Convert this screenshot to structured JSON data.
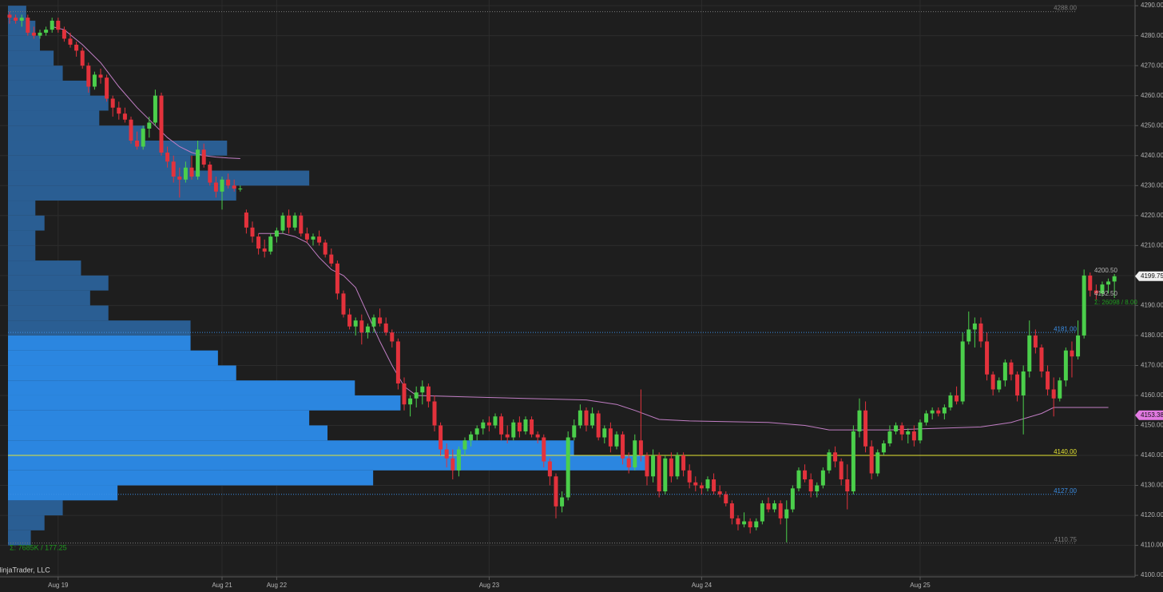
{
  "chart_data": {
    "type": "candlestick",
    "up_color": "#4bcf4b",
    "down_color": "#e3323c",
    "grid": true,
    "xlim": [
      -1.58,
      185.4
    ],
    "xticks": [
      {
        "value": 8,
        "label": "Aug 19"
      },
      {
        "value": 35,
        "label": "Aug 21"
      },
      {
        "value": 44,
        "label": "Aug 22"
      },
      {
        "value": 79,
        "label": "Aug 23"
      },
      {
        "value": 114,
        "label": "Aug 24"
      },
      {
        "value": 150,
        "label": "Aug 25"
      }
    ],
    "ylim": [
      4099.5,
      4291.9
    ],
    "yticks": [
      {
        "value": 4100,
        "label": "4100.00"
      },
      {
        "value": 4110,
        "label": "4110.00"
      },
      {
        "value": 4120,
        "label": "4120.00"
      },
      {
        "value": 4130,
        "label": "4130.00"
      },
      {
        "value": 4140,
        "label": "4140.00"
      },
      {
        "value": 4150,
        "label": "4150.00"
      },
      {
        "value": 4160,
        "label": "4160.00"
      },
      {
        "value": 4170,
        "label": "4170.00"
      },
      {
        "value": 4180,
        "label": "4180.00"
      },
      {
        "value": 4190,
        "label": "4190.00"
      },
      {
        "value": 4200,
        "label": "4200.00"
      },
      {
        "value": 4210,
        "label": "4210.00"
      },
      {
        "value": 4220,
        "label": "4220.00"
      },
      {
        "value": 4230,
        "label": "4230.00"
      },
      {
        "value": 4240,
        "label": "4240.00"
      },
      {
        "value": 4250,
        "label": "4250.00"
      },
      {
        "value": 4260,
        "label": "4260.00"
      },
      {
        "value": 4270,
        "label": "4270.00"
      },
      {
        "value": 4280,
        "label": "4280.00"
      },
      {
        "value": 4290,
        "label": "4290.00"
      }
    ],
    "ohlc": [
      [
        4287,
        4288,
        4284,
        4286
      ],
      [
        4286,
        4287,
        4284,
        4285
      ],
      [
        4285,
        4287,
        4283,
        4286
      ],
      [
        4286,
        4287,
        4280,
        4281
      ],
      [
        4281,
        4283,
        4279,
        4280
      ],
      [
        4280,
        4282,
        4279,
        4281
      ],
      [
        4281,
        4283,
        4280,
        4282
      ],
      [
        4282,
        4286,
        4281,
        4285
      ],
      [
        4285,
        4286,
        4281,
        4282
      ],
      [
        4282,
        4283,
        4278,
        4279
      ],
      [
        4279,
        4281,
        4276,
        4277
      ],
      [
        4277,
        4278,
        4273,
        4275
      ],
      [
        4275,
        4276,
        4269,
        4270
      ],
      [
        4270,
        4271,
        4261,
        4263
      ],
      [
        4263,
        4268,
        4262,
        4267
      ],
      [
        4267,
        4269,
        4264,
        4266
      ],
      [
        4266,
        4267,
        4258,
        4259
      ],
      [
        4259,
        4260,
        4253,
        4256
      ],
      [
        4256,
        4258,
        4252,
        4254
      ],
      [
        4254,
        4256,
        4251,
        4252
      ],
      [
        4252,
        4253,
        4244,
        4245
      ],
      [
        4245,
        4248,
        4242,
        4243
      ],
      [
        4243,
        4250,
        4242,
        4249
      ],
      [
        4249,
        4253,
        4246,
        4251
      ],
      [
        4251,
        4262,
        4250,
        4260
      ],
      [
        4260,
        4261,
        4240,
        4241
      ],
      [
        4241,
        4243,
        4236,
        4238
      ],
      [
        4238,
        4240,
        4231,
        4233
      ],
      [
        4233,
        4236,
        4226,
        4232
      ],
      [
        4232,
        4238,
        4231,
        4236
      ],
      [
        4236,
        4240,
        4232,
        4233
      ],
      [
        4233,
        4245,
        4232,
        4242
      ],
      [
        4242,
        4244,
        4236,
        4237
      ],
      [
        4237,
        4238,
        4230,
        4231
      ],
      [
        4231,
        4233,
        4226,
        4228
      ],
      [
        4228,
        4233,
        4222,
        4232
      ],
      [
        4232,
        4234,
        4229,
        4230
      ],
      [
        4230,
        4232,
        4228,
        4229
      ],
      [
        4229,
        4230,
        4228,
        4229
      ],
      [
        4221,
        4222,
        4214,
        4216
      ],
      [
        4216,
        4218,
        4211,
        4213
      ],
      [
        4213,
        4214,
        4207,
        4209
      ],
      [
        4209,
        4212,
        4206,
        4208
      ],
      [
        4208,
        4214,
        4207,
        4213
      ],
      [
        4213,
        4216,
        4211,
        4215
      ],
      [
        4215,
        4221,
        4214,
        4220
      ],
      [
        4220,
        4222,
        4214,
        4216
      ],
      [
        4216,
        4221,
        4215,
        4220
      ],
      [
        4220,
        4221,
        4213,
        4214
      ],
      [
        4214,
        4216,
        4211,
        4212
      ],
      [
        4212,
        4214,
        4210,
        4213
      ],
      [
        4213,
        4215,
        4210,
        4211
      ],
      [
        4211,
        4212,
        4206,
        4207
      ],
      [
        4207,
        4209,
        4203,
        4204
      ],
      [
        4204,
        4205,
        4192,
        4194
      ],
      [
        4194,
        4195,
        4186,
        4187
      ],
      [
        4187,
        4189,
        4182,
        4183
      ],
      [
        4183,
        4186,
        4180,
        4185
      ],
      [
        4185,
        4187,
        4177,
        4181
      ],
      [
        4181,
        4184,
        4179,
        4183
      ],
      [
        4183,
        4187,
        4181,
        4186
      ],
      [
        4186,
        4189,
        4183,
        4184
      ],
      [
        4184,
        4186,
        4180,
        4181
      ],
      [
        4181,
        4182,
        4176,
        4178
      ],
      [
        4178,
        4179,
        4162,
        4164
      ],
      [
        4164,
        4166,
        4155,
        4157
      ],
      [
        4157,
        4160,
        4153,
        4159
      ],
      [
        4159,
        4163,
        4156,
        4161
      ],
      [
        4161,
        4165,
        4157,
        4163
      ],
      [
        4163,
        4164,
        4156,
        4158
      ],
      [
        4158,
        4160,
        4148,
        4150
      ],
      [
        4150,
        4151,
        4140,
        4142
      ],
      [
        4142,
        4144,
        4136,
        4139
      ],
      [
        4139,
        4142,
        4132,
        4135
      ],
      [
        4135,
        4143,
        4133,
        4142
      ],
      [
        4142,
        4146,
        4140,
        4145
      ],
      [
        4145,
        4148,
        4143,
        4147
      ],
      [
        4147,
        4150,
        4145,
        4149
      ],
      [
        4149,
        4152,
        4147,
        4151
      ],
      [
        4151,
        4153,
        4148,
        4150
      ],
      [
        4150,
        4154,
        4149,
        4153
      ],
      [
        4153,
        4154,
        4145,
        4147
      ],
      [
        4147,
        4150,
        4144,
        4146
      ],
      [
        4146,
        4152,
        4145,
        4151
      ],
      [
        4151,
        4153,
        4146,
        4148
      ],
      [
        4148,
        4153,
        4147,
        4152
      ],
      [
        4152,
        4153,
        4146,
        4147
      ],
      [
        4147,
        4148,
        4144,
        4146
      ],
      [
        4146,
        4147,
        4136,
        4138
      ],
      [
        4138,
        4139,
        4130,
        4133
      ],
      [
        4133,
        4134,
        4119,
        4123
      ],
      [
        4123,
        4128,
        4121,
        4126
      ],
      [
        4126,
        4148,
        4125,
        4146
      ],
      [
        4146,
        4152,
        4145,
        4150
      ],
      [
        4150,
        4157,
        4149,
        4155
      ],
      [
        4155,
        4156,
        4148,
        4150
      ],
      [
        4150,
        4156,
        4149,
        4154
      ],
      [
        4154,
        4155,
        4145,
        4146
      ],
      [
        4146,
        4150,
        4144,
        4149
      ],
      [
        4149,
        4151,
        4141,
        4143
      ],
      [
        4143,
        4148,
        4142,
        4147
      ],
      [
        4147,
        4148,
        4137,
        4139
      ],
      [
        4139,
        4141,
        4134,
        4136
      ],
      [
        4136,
        4147,
        4135,
        4145
      ],
      [
        4145,
        4162,
        4138,
        4140
      ],
      [
        4140,
        4141,
        4130,
        4133
      ],
      [
        4133,
        4142,
        4131,
        4140
      ],
      [
        4140,
        4141,
        4126,
        4128
      ],
      [
        4128,
        4140,
        4127,
        4139
      ],
      [
        4139,
        4141,
        4131,
        4133
      ],
      [
        4133,
        4141,
        4132,
        4140
      ],
      [
        4140,
        4141,
        4133,
        4135
      ],
      [
        4135,
        4137,
        4129,
        4131
      ],
      [
        4131,
        4133,
        4128,
        4130
      ],
      [
        4130,
        4131,
        4127,
        4129
      ],
      [
        4129,
        4133,
        4128,
        4132
      ],
      [
        4132,
        4134,
        4127,
        4128
      ],
      [
        4128,
        4130,
        4126,
        4127
      ],
      [
        4127,
        4128,
        4123,
        4124
      ],
      [
        4124,
        4125,
        4117,
        4119
      ],
      [
        4119,
        4120,
        4115,
        4117
      ],
      [
        4117,
        4121,
        4116,
        4118
      ],
      [
        4118,
        4119,
        4114,
        4116
      ],
      [
        4116,
        4119,
        4115,
        4118
      ],
      [
        4118,
        4125,
        4117,
        4124
      ],
      [
        4124,
        4126,
        4121,
        4122
      ],
      [
        4122,
        4125,
        4121,
        4124
      ],
      [
        4124,
        4125,
        4117,
        4119
      ],
      [
        4119,
        4125,
        4111,
        4122
      ],
      [
        4122,
        4130,
        4121,
        4129
      ],
      [
        4129,
        4136,
        4128,
        4135
      ],
      [
        4135,
        4137,
        4131,
        4132
      ],
      [
        4132,
        4134,
        4126,
        4128
      ],
      [
        4128,
        4131,
        4126,
        4130
      ],
      [
        4130,
        4136,
        4129,
        4135
      ],
      [
        4135,
        4142,
        4134,
        4141
      ],
      [
        4141,
        4143,
        4136,
        4138
      ],
      [
        4138,
        4139,
        4130,
        4132
      ],
      [
        4132,
        4137,
        4122,
        4128
      ],
      [
        4128,
        4150,
        4127,
        4148
      ],
      [
        4148,
        4159,
        4146,
        4155
      ],
      [
        4155,
        4158,
        4141,
        4143
      ],
      [
        4143,
        4145,
        4132,
        4134
      ],
      [
        4134,
        4142,
        4133,
        4141
      ],
      [
        4141,
        4145,
        4140,
        4144
      ],
      [
        4144,
        4150,
        4143,
        4148
      ],
      [
        4148,
        4151,
        4147,
        4150
      ],
      [
        4150,
        4151,
        4145,
        4147
      ],
      [
        4147,
        4149,
        4144,
        4148
      ],
      [
        4148,
        4150,
        4143,
        4145
      ],
      [
        4145,
        4152,
        4144,
        4151
      ],
      [
        4151,
        4155,
        4150,
        4154
      ],
      [
        4154,
        4156,
        4152,
        4155
      ],
      [
        4155,
        4156,
        4153,
        4154
      ],
      [
        4154,
        4157,
        4152,
        4156
      ],
      [
        4156,
        4161,
        4155,
        4160
      ],
      [
        4160,
        4163,
        4157,
        4158
      ],
      [
        4158,
        4181,
        4157,
        4178
      ],
      [
        4178,
        4188,
        4177,
        4182
      ],
      [
        4182,
        4186,
        4176,
        4184
      ],
      [
        4184,
        4186,
        4176,
        4178
      ],
      [
        4178,
        4181,
        4165,
        4167
      ],
      [
        4167,
        4168,
        4160,
        4162
      ],
      [
        4162,
        4166,
        4161,
        4165
      ],
      [
        4165,
        4172,
        4163,
        4171
      ],
      [
        4171,
        4172,
        4165,
        4167
      ],
      [
        4167,
        4168,
        4158,
        4160
      ],
      [
        4160,
        4170,
        4147,
        4168
      ],
      [
        4168,
        4185,
        4166,
        4180
      ],
      [
        4180,
        4182,
        4174,
        4176
      ],
      [
        4176,
        4177,
        4166,
        4168
      ],
      [
        4168,
        4170,
        4160,
        4162
      ],
      [
        4162,
        4166,
        4153,
        4159
      ],
      [
        4159,
        4166,
        4158,
        4165
      ],
      [
        4165,
        4176,
        4163,
        4175
      ],
      [
        4175,
        4178,
        4166,
        4173
      ],
      [
        4173,
        4185,
        4172,
        4180
      ],
      [
        4180,
        4202,
        4179,
        4200
      ],
      [
        4200,
        4201,
        4193,
        4195
      ],
      [
        4195,
        4197,
        4192,
        4194
      ],
      [
        4194,
        4198,
        4193,
        4197
      ],
      [
        4197,
        4199,
        4194,
        4198
      ],
      [
        4198,
        4200.5,
        4192.5,
        4199.75
      ]
    ],
    "vwap": {
      "color": "#c17ec4",
      "x": [
        7,
        9,
        12,
        15,
        18,
        21,
        24,
        26,
        28,
        30,
        32,
        34,
        36,
        38,
        40,
        41,
        45,
        47,
        49,
        51,
        53,
        55,
        57,
        59,
        61,
        63,
        65,
        67,
        75,
        85,
        95,
        100,
        103,
        107,
        112,
        125,
        131,
        135,
        145,
        160,
        165,
        170,
        172,
        181
      ],
      "values": [
        4283,
        4282,
        4277,
        4271,
        4263,
        4256,
        4250,
        4246,
        4243,
        4241,
        4240,
        4239.5,
        4239.2,
        4239,
        null,
        4214,
        4214,
        4213,
        4211,
        4206,
        4202,
        4200,
        4196,
        4187,
        4178,
        4170,
        4163,
        4160,
        4159.5,
        4159,
        4158.5,
        4157,
        4155,
        4152,
        4151.5,
        4151,
        4150,
        4148.5,
        4148.5,
        4149.5,
        4151,
        4154,
        4156,
        4156
      ]
    },
    "profile": {
      "color": "#2a5e93",
      "value_area_color": "#2b86e0",
      "bins": [
        4110,
        4115,
        4120,
        4125,
        4130,
        4135,
        4140,
        4145,
        4150,
        4155,
        4160,
        4165,
        4170,
        4175,
        4180,
        4185,
        4190,
        4195,
        4200,
        4205,
        4210,
        4215,
        4220,
        4225,
        4230,
        4235,
        4240,
        4245,
        4250,
        4255,
        4260,
        4265,
        4270,
        4275,
        4280,
        4285,
        4290
      ],
      "values": [
        25,
        40,
        60,
        120,
        400,
        700,
        620,
        350,
        330,
        430,
        380,
        250,
        230,
        200,
        200,
        110,
        90,
        110,
        80,
        30,
        30,
        40,
        30,
        250,
        330,
        200,
        240,
        150,
        100,
        110,
        90,
        60,
        50,
        35,
        30,
        20
      ]
    },
    "levels": [
      {
        "value": 4288,
        "label": "4288.00",
        "color": "#7a7a7a"
      },
      {
        "value": 4181,
        "label": "4181.00",
        "color": "#3a8ee6"
      },
      {
        "value": 4140,
        "label": "4140.00",
        "color": "#e6e632"
      },
      {
        "value": 4127,
        "label": "4127.00",
        "color": "#3a8ee6"
      },
      {
        "value": 4110.75,
        "label": "4110.75",
        "color": "#7a7a7a"
      }
    ],
    "markers": [
      {
        "value": 4199.75,
        "color": "#f0f0f0"
      },
      {
        "value": 4153.38,
        "color": "#e27ae2"
      }
    ],
    "annotations": {
      "profile_total": "Σ: 7685K / 177.25",
      "last_total": "Σ: 26098 / 8.00",
      "high": "4200.50",
      "low": "4192.50",
      "copyright": "NinjaTrader, LLC"
    }
  }
}
